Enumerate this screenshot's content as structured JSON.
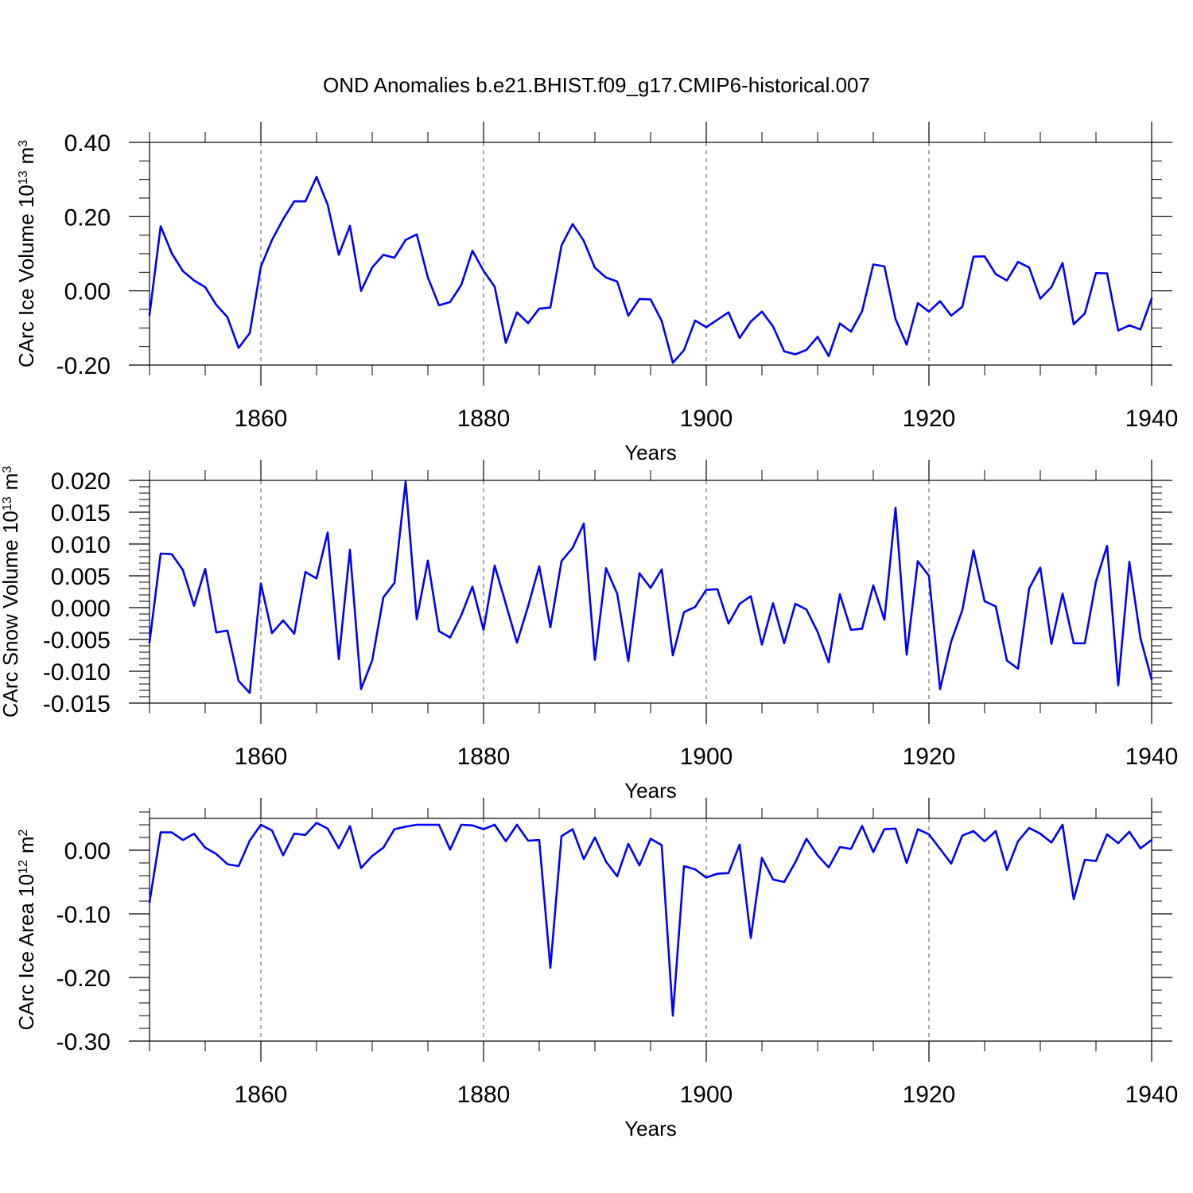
{
  "title": "OND Anomalies b.e21.BHIST.f09_g17.CMIP6-historical.007",
  "colors": {
    "line": "#0000ff",
    "axis": "#000000",
    "grid": "#555555"
  },
  "chart_data": [
    {
      "type": "line",
      "title": "OND Anomalies b.e21.BHIST.f09_g17.CMIP6-historical.007",
      "xlabel": "Years",
      "ylabel": "CArc Ice Volume 10",
      "ylabel_sup": "13",
      "ylabel_unit": "m",
      "ylabel_unit_sup": "3",
      "xlim": [
        1850,
        1940
      ],
      "ylim": [
        -0.2,
        0.4
      ],
      "xticks": [
        1860,
        1880,
        1900,
        1920,
        1940
      ],
      "xtick_labels": [
        "1860",
        "1880",
        "1900",
        "1920",
        "1940"
      ],
      "yticks": [
        -0.2,
        0.0,
        0.2,
        0.4
      ],
      "ytick_labels": [
        "-0.20",
        "0.00",
        "0.20",
        "0.40"
      ],
      "yminor_step": 0.05,
      "grid": "vertical dashed at major x ticks",
      "series": [
        {
          "name": "CArc Ice Volume",
          "x_start": 1850,
          "x_step": 1,
          "values": [
            -0.065,
            0.174,
            0.101,
            0.053,
            0.028,
            0.01,
            -0.038,
            -0.071,
            -0.154,
            -0.114,
            0.065,
            0.137,
            0.193,
            0.241,
            0.241,
            0.307,
            0.232,
            0.097,
            0.175,
            0.0,
            0.063,
            0.097,
            0.089,
            0.137,
            0.152,
            0.036,
            -0.039,
            -0.03,
            0.016,
            0.108,
            0.054,
            0.011,
            -0.14,
            -0.058,
            -0.087,
            -0.048,
            -0.045,
            0.122,
            0.18,
            0.135,
            0.062,
            0.036,
            0.025,
            -0.067,
            -0.022,
            -0.023,
            -0.081,
            -0.194,
            -0.16,
            -0.08,
            -0.098,
            -0.078,
            -0.058,
            -0.127,
            -0.083,
            -0.056,
            -0.096,
            -0.163,
            -0.171,
            -0.159,
            -0.124,
            -0.176,
            -0.088,
            -0.11,
            -0.055,
            0.071,
            0.066,
            -0.076,
            -0.145,
            -0.033,
            -0.056,
            -0.028,
            -0.067,
            -0.043,
            0.092,
            0.093,
            0.045,
            0.028,
            0.078,
            0.063,
            -0.021,
            0.01,
            0.075,
            -0.09,
            -0.061,
            0.048,
            0.047,
            -0.107,
            -0.093,
            -0.104,
            -0.021
          ]
        }
      ]
    },
    {
      "type": "line",
      "xlabel": "Years",
      "ylabel": "CArc Snow Volume 10",
      "ylabel_sup": "13",
      "ylabel_unit": "m",
      "ylabel_unit_sup": "3",
      "xlim": [
        1850,
        1940
      ],
      "ylim": [
        -0.015,
        0.02
      ],
      "xticks": [
        1860,
        1880,
        1900,
        1920,
        1940
      ],
      "xtick_labels": [
        "1860",
        "1880",
        "1900",
        "1920",
        "1940"
      ],
      "yticks": [
        -0.015,
        -0.01,
        -0.005,
        0.0,
        0.005,
        0.01,
        0.015,
        0.02
      ],
      "ytick_labels": [
        "-0.015",
        "-0.010",
        "-0.005",
        "0.000",
        "0.005",
        "0.010",
        "0.015",
        "0.020"
      ],
      "yminor_step": 0.001,
      "grid": "vertical dashed at major x ticks",
      "series": [
        {
          "name": "CArc Snow Volume",
          "x_start": 1850,
          "x_step": 1,
          "values": [
            -0.0055,
            0.0085,
            0.0084,
            0.0059,
            0.0003,
            0.0061,
            -0.0039,
            -0.0036,
            -0.0115,
            -0.0134,
            0.0038,
            -0.004,
            -0.002,
            -0.0041,
            0.0056,
            0.0046,
            0.0118,
            -0.0081,
            0.0091,
            -0.0128,
            -0.0083,
            0.0016,
            0.0039,
            0.0198,
            -0.0018,
            0.0074,
            -0.0037,
            -0.0047,
            -0.0012,
            0.0033,
            -0.0035,
            0.0066,
            0.0006,
            -0.0055,
            0.0002,
            0.0065,
            -0.0031,
            0.0073,
            0.0094,
            0.0132,
            -0.0082,
            0.0062,
            0.0022,
            -0.0084,
            0.0054,
            0.0031,
            0.006,
            -0.0075,
            -0.0007,
            0.0001,
            0.0028,
            0.0029,
            -0.0025,
            0.0006,
            0.0018,
            -0.0058,
            0.0007,
            -0.0056,
            0.0006,
            -0.0003,
            -0.0038,
            -0.0086,
            0.0021,
            -0.0035,
            -0.0033,
            0.0035,
            -0.0019,
            0.0157,
            -0.0074,
            0.0073,
            0.005,
            -0.0128,
            -0.0053,
            -0.0004,
            0.009,
            0.001,
            0.0002,
            -0.0083,
            -0.0096,
            0.003,
            0.0063,
            -0.0057,
            0.0022,
            -0.0056,
            -0.0056,
            0.0041,
            0.0097,
            -0.0122,
            0.0072,
            -0.0048,
            -0.0113
          ]
        }
      ]
    },
    {
      "type": "line",
      "xlabel": "Years",
      "ylabel": "CArc Ice Area 10",
      "ylabel_sup": "12",
      "ylabel_unit": "m",
      "ylabel_unit_sup": "2",
      "xlim": [
        1850,
        1940
      ],
      "ylim": [
        -0.3,
        0.05
      ],
      "xticks": [
        1860,
        1880,
        1900,
        1920,
        1940
      ],
      "xtick_labels": [
        "1860",
        "1880",
        "1900",
        "1920",
        "1940"
      ],
      "yticks": [
        -0.3,
        -0.2,
        -0.1,
        0.0
      ],
      "ytick_labels": [
        "-0.30",
        "-0.20",
        "-0.10",
        "0.00"
      ],
      "yminor_step": 0.02,
      "grid": "vertical dashed at major x ticks",
      "series": [
        {
          "name": "CArc Ice Area",
          "x_start": 1850,
          "x_step": 1,
          "values": [
            -0.082,
            0.028,
            0.028,
            0.016,
            0.026,
            0.004,
            -0.006,
            -0.022,
            -0.025,
            0.015,
            0.04,
            0.031,
            -0.008,
            0.026,
            0.024,
            0.043,
            0.034,
            0.003,
            0.038,
            -0.028,
            -0.009,
            0.004,
            0.033,
            0.037,
            0.04,
            0.04,
            0.04,
            0.001,
            0.04,
            0.039,
            0.033,
            0.04,
            0.014,
            0.04,
            0.015,
            0.016,
            -0.185,
            0.022,
            0.033,
            -0.014,
            0.02,
            -0.018,
            -0.041,
            0.01,
            -0.024,
            0.018,
            0.008,
            -0.26,
            -0.025,
            -0.03,
            -0.043,
            -0.037,
            -0.036,
            0.009,
            -0.138,
            -0.012,
            -0.046,
            -0.05,
            -0.019,
            0.018,
            -0.008,
            -0.027,
            0.005,
            0.002,
            0.038,
            -0.003,
            0.033,
            0.034,
            -0.02,
            0.033,
            0.025,
            0.002,
            -0.021,
            0.023,
            0.03,
            0.014,
            0.03,
            -0.031,
            0.014,
            0.035,
            0.026,
            0.012,
            0.04,
            -0.077,
            -0.015,
            -0.017,
            0.025,
            0.011,
            0.029,
            0.003,
            0.016
          ]
        }
      ]
    }
  ]
}
